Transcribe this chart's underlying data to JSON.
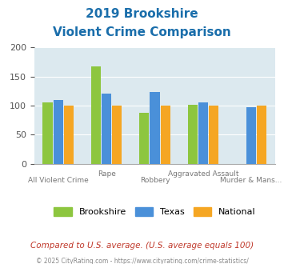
{
  "title_line1": "2019 Brookshire",
  "title_line2": "Violent Crime Comparison",
  "categories": [
    "All Violent Crime",
    "Rape",
    "Robbery",
    "Aggravated Assault",
    "Murder & Mans..."
  ],
  "brookshire": [
    105,
    168,
    87,
    101,
    0
  ],
  "texas": [
    110,
    120,
    123,
    106,
    97
  ],
  "national": [
    100,
    100,
    100,
    100,
    100
  ],
  "color_brookshire": "#8dc63f",
  "color_texas": "#4a90d9",
  "color_national": "#f5a623",
  "background_color": "#dce9ef",
  "ylim": [
    0,
    200
  ],
  "yticks": [
    0,
    50,
    100,
    150,
    200
  ],
  "xlabel_top": [
    "Rape",
    "Aggravated Assault"
  ],
  "xlabel_bottom": [
    "All Violent Crime",
    "Robbery",
    "Murder & Mans..."
  ],
  "footnote": "Compared to U.S. average. (U.S. average equals 100)",
  "copyright": "© 2025 CityRating.com - https://www.cityrating.com/crime-statistics/",
  "title_color": "#1a6eab",
  "footnote_color": "#c0392b",
  "copyright_color": "#888888"
}
